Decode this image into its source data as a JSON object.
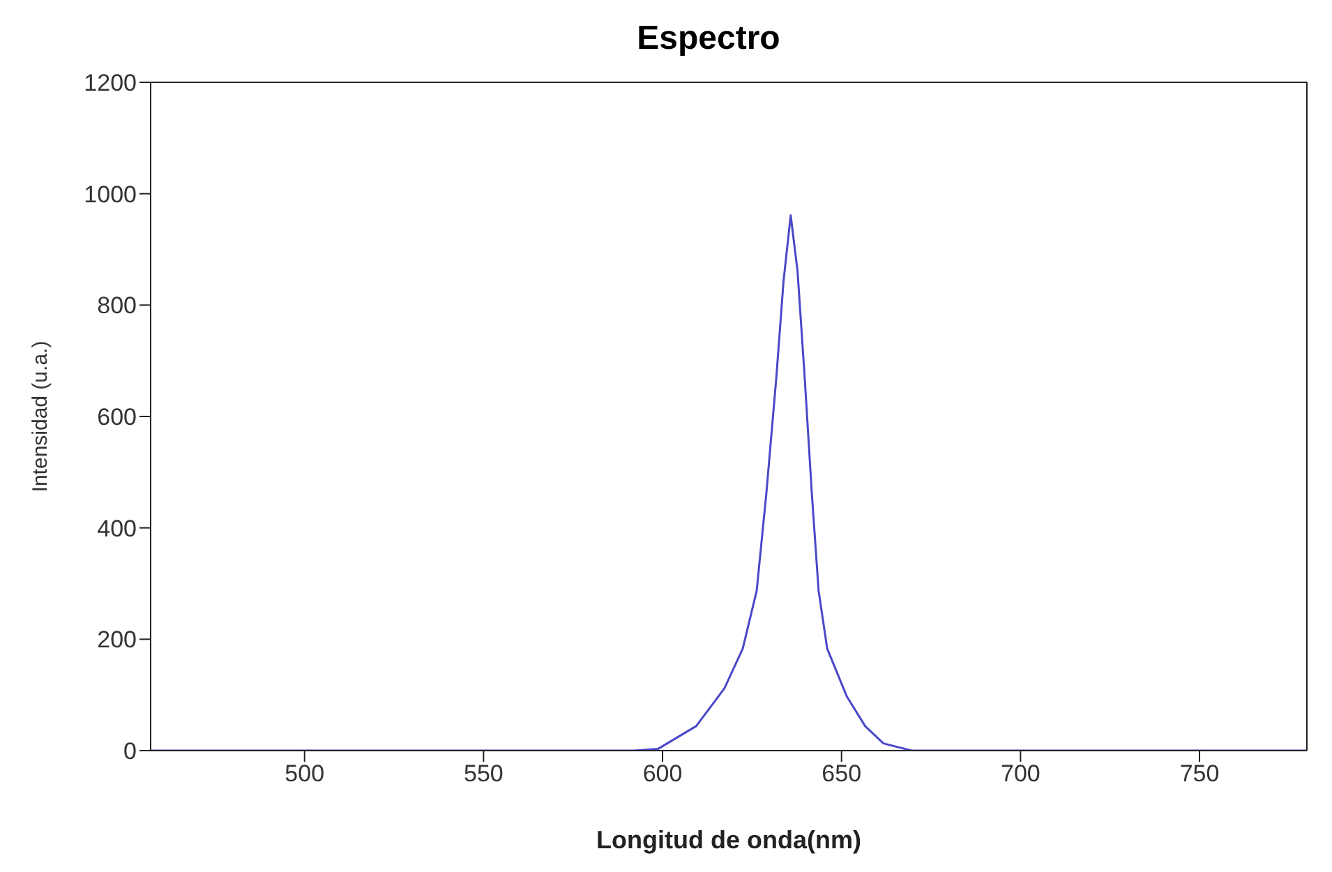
{
  "chart_data": {
    "type": "line",
    "title": "Espectro",
    "xlabel": "Longitud de onda(nm)",
    "ylabel": "Intensidad (u.a.)",
    "x": [
      457,
      592,
      598.7,
      609.4,
      617.3,
      622.4,
      626.3,
      629,
      631.8,
      633.8,
      635.8,
      637.7,
      639.7,
      641.7,
      643.6,
      646,
      651.5,
      656.6,
      661.7,
      669.6,
      780
    ],
    "series": [
      {
        "color": "#4a48c8",
        "values": [
          0,
          0,
          3,
          44,
          112,
          183,
          287,
          462,
          671,
          843,
          961,
          862,
          671,
          462,
          287,
          183,
          97,
          44,
          13,
          0,
          0
        ]
      }
    ],
    "xlim": [
      457,
      780
    ],
    "xticks": [
      500,
      550,
      600,
      650,
      700,
      750
    ],
    "ylim": [
      0,
      1200
    ],
    "yticks": [
      0,
      200,
      400,
      600,
      800,
      1000,
      1200
    ],
    "grid": false,
    "legend": false,
    "marker": "none",
    "line_style": "solid"
  }
}
